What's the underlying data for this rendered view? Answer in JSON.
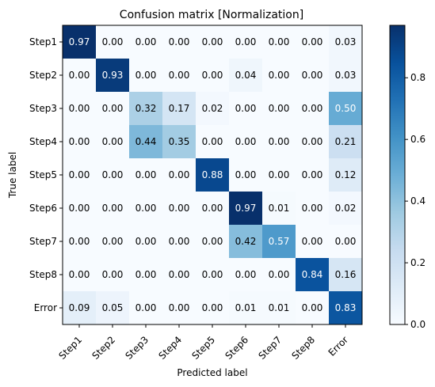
{
  "chart_data": {
    "type": "heatmap",
    "title": "Confusion matrix [Normalization]",
    "xlabel": "Predicted label",
    "ylabel": "True label",
    "x_categories": [
      "Step1",
      "Step2",
      "Step3",
      "Step4",
      "Step5",
      "Step6",
      "Step7",
      "Step8",
      "Error"
    ],
    "y_categories": [
      "Step1",
      "Step2",
      "Step3",
      "Step4",
      "Step5",
      "Step6",
      "Step7",
      "Step8",
      "Error"
    ],
    "values": [
      [
        0.97,
        0.0,
        0.0,
        0.0,
        0.0,
        0.0,
        0.0,
        0.0,
        0.03
      ],
      [
        0.0,
        0.93,
        0.0,
        0.0,
        0.0,
        0.04,
        0.0,
        0.0,
        0.03
      ],
      [
        0.0,
        0.0,
        0.32,
        0.17,
        0.02,
        0.0,
        0.0,
        0.0,
        0.5
      ],
      [
        0.0,
        0.0,
        0.44,
        0.35,
        0.0,
        0.0,
        0.0,
        0.0,
        0.21
      ],
      [
        0.0,
        0.0,
        0.0,
        0.0,
        0.88,
        0.0,
        0.0,
        0.0,
        0.12
      ],
      [
        0.0,
        0.0,
        0.0,
        0.0,
        0.0,
        0.97,
        0.01,
        0.0,
        0.02
      ],
      [
        0.0,
        0.0,
        0.0,
        0.0,
        0.0,
        0.42,
        0.57,
        0.0,
        0.0
      ],
      [
        0.0,
        0.0,
        0.0,
        0.0,
        0.0,
        0.0,
        0.0,
        0.84,
        0.16
      ],
      [
        0.09,
        0.05,
        0.0,
        0.0,
        0.0,
        0.01,
        0.01,
        0.0,
        0.83
      ]
    ],
    "colormap": "Blues",
    "color_range": [
      0.0,
      0.97
    ],
    "colorbar_ticks": [
      "0.0",
      "0.2",
      "0.4",
      "0.6",
      "0.8"
    ],
    "colorbar_tick_values": [
      0.0,
      0.2,
      0.4,
      0.6,
      0.8
    ],
    "text_threshold": 0.485,
    "grid": false
  }
}
